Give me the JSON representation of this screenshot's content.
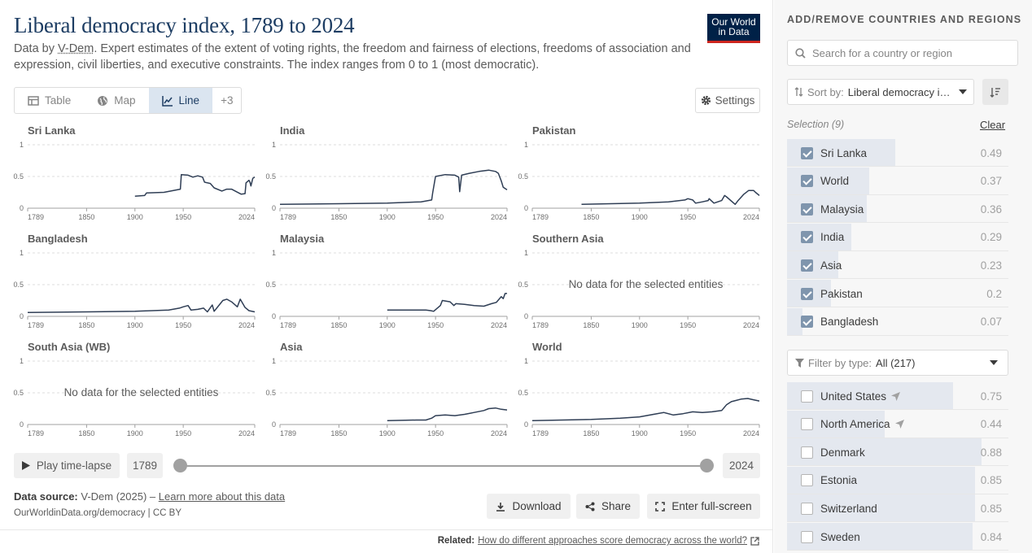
{
  "header": {
    "title": "Liberal democracy index, 1789 to 2024",
    "subtitle_prefix": "Data by ",
    "subtitle_link": "V-Dem",
    "subtitle_rest": ". Expert estimates of the extent of voting rights, the freedom and fairness of elections, freedoms of association and expression, civil liberties, and executive constraints. The index ranges from 0 to 1 (most democratic).",
    "logo_line1": "Our World",
    "logo_line2": "in Data"
  },
  "tabs": [
    {
      "label": "Table",
      "icon": "table-icon",
      "active": false
    },
    {
      "label": "Map",
      "icon": "globe-icon",
      "active": false
    },
    {
      "label": "Line",
      "icon": "line-chart-icon",
      "active": true
    },
    {
      "label": "+3",
      "icon": "",
      "active": false
    }
  ],
  "settings_label": "Settings",
  "timeline": {
    "play_label": "Play time-lapse",
    "start_year": "1789",
    "end_year": "2024"
  },
  "footer": {
    "source_label": "Data source:",
    "source_text": " V-Dem (2025) – ",
    "learn_more": "Learn more about this data",
    "license": "OurWorldinData.org/democracy | CC BY",
    "download_label": "Download",
    "share_label": "Share",
    "fullscreen_label": "Enter full-screen",
    "related_label": "Related:",
    "related_link": "How do different approaches score democracy across the world?"
  },
  "sidebar": {
    "title": "ADD/REMOVE COUNTRIES AND REGIONS",
    "search_placeholder": "Search for a country or region",
    "sort_label": "Sort by:",
    "sort_value": "Liberal democracy index",
    "selection_label": "Selection (9)",
    "clear_label": "Clear",
    "selected": [
      {
        "name": "Sri Lanka",
        "value": "0.49",
        "share": 0.49
      },
      {
        "name": "World",
        "value": "0.37",
        "share": 0.37
      },
      {
        "name": "Malaysia",
        "value": "0.36",
        "share": 0.36
      },
      {
        "name": "India",
        "value": "0.29",
        "share": 0.29
      },
      {
        "name": "Asia",
        "value": "0.23",
        "share": 0.23
      },
      {
        "name": "Pakistan",
        "value": "0.2",
        "share": 0.2
      },
      {
        "name": "Bangladesh",
        "value": "0.07",
        "share": 0.07
      }
    ],
    "filter_label": "Filter by type:",
    "filter_value": "All (217)",
    "available": [
      {
        "name": "United States",
        "value": "0.75",
        "share": 0.75,
        "arrow": true
      },
      {
        "name": "North America",
        "value": "0.44",
        "share": 0.44,
        "arrow": true
      },
      {
        "name": "Denmark",
        "value": "0.88",
        "share": 0.88,
        "arrow": false
      },
      {
        "name": "Estonia",
        "value": "0.85",
        "share": 0.85,
        "arrow": false
      },
      {
        "name": "Switzerland",
        "value": "0.85",
        "share": 0.85,
        "arrow": false
      },
      {
        "name": "Sweden",
        "value": "0.84",
        "share": 0.84,
        "arrow": false
      }
    ]
  },
  "chart_data": {
    "type": "line",
    "layout": "small-multiples",
    "x_ticks": [
      1789,
      1850,
      1900,
      1950,
      2024
    ],
    "y_ticks": [
      0,
      0.5,
      1
    ],
    "xlim": [
      1789,
      2024
    ],
    "ylim": [
      0,
      1
    ],
    "nodata_text": "No data for the selected entities",
    "panels": [
      {
        "name": "Sri Lanka",
        "series": [
          [
            1900,
            0.19
          ],
          [
            1910,
            0.2
          ],
          [
            1912,
            0.24
          ],
          [
            1930,
            0.25
          ],
          [
            1947,
            0.3
          ],
          [
            1948,
            0.53
          ],
          [
            1955,
            0.52
          ],
          [
            1960,
            0.49
          ],
          [
            1965,
            0.51
          ],
          [
            1970,
            0.49
          ],
          [
            1972,
            0.41
          ],
          [
            1978,
            0.39
          ],
          [
            1982,
            0.32
          ],
          [
            1990,
            0.27
          ],
          [
            1995,
            0.3
          ],
          [
            2000,
            0.3
          ],
          [
            2005,
            0.26
          ],
          [
            2010,
            0.22
          ],
          [
            2014,
            0.23
          ],
          [
            2015,
            0.4
          ],
          [
            2018,
            0.44
          ],
          [
            2019,
            0.41
          ],
          [
            2020,
            0.35
          ],
          [
            2022,
            0.47
          ],
          [
            2024,
            0.49
          ]
        ]
      },
      {
        "name": "India",
        "series": [
          [
            1789,
            0.06
          ],
          [
            1850,
            0.07
          ],
          [
            1900,
            0.08
          ],
          [
            1935,
            0.1
          ],
          [
            1946,
            0.13
          ],
          [
            1947,
            0.24
          ],
          [
            1950,
            0.5
          ],
          [
            1960,
            0.53
          ],
          [
            1970,
            0.52
          ],
          [
            1974,
            0.49
          ],
          [
            1975,
            0.26
          ],
          [
            1977,
            0.52
          ],
          [
            1985,
            0.55
          ],
          [
            1995,
            0.58
          ],
          [
            2005,
            0.6
          ],
          [
            2012,
            0.58
          ],
          [
            2015,
            0.55
          ],
          [
            2018,
            0.43
          ],
          [
            2020,
            0.33
          ],
          [
            2024,
            0.29
          ]
        ]
      },
      {
        "name": "Pakistan",
        "series": [
          [
            1840,
            0.06
          ],
          [
            1870,
            0.07
          ],
          [
            1900,
            0.08
          ],
          [
            1930,
            0.1
          ],
          [
            1947,
            0.13
          ],
          [
            1950,
            0.15
          ],
          [
            1955,
            0.13
          ],
          [
            1958,
            0.08
          ],
          [
            1965,
            0.1
          ],
          [
            1971,
            0.12
          ],
          [
            1972,
            0.15
          ],
          [
            1977,
            0.08
          ],
          [
            1985,
            0.12
          ],
          [
            1988,
            0.2
          ],
          [
            1990,
            0.18
          ],
          [
            1999,
            0.06
          ],
          [
            2002,
            0.12
          ],
          [
            2008,
            0.22
          ],
          [
            2013,
            0.28
          ],
          [
            2018,
            0.28
          ],
          [
            2020,
            0.25
          ],
          [
            2024,
            0.2
          ]
        ]
      },
      {
        "name": "Bangladesh",
        "series": [
          [
            1789,
            0.06
          ],
          [
            1850,
            0.07
          ],
          [
            1900,
            0.08
          ],
          [
            1935,
            0.1
          ],
          [
            1946,
            0.13
          ],
          [
            1950,
            0.15
          ],
          [
            1955,
            0.17
          ],
          [
            1958,
            0.1
          ],
          [
            1965,
            0.11
          ],
          [
            1971,
            0.13
          ],
          [
            1975,
            0.07
          ],
          [
            1980,
            0.18
          ],
          [
            1982,
            0.08
          ],
          [
            1991,
            0.25
          ],
          [
            1995,
            0.27
          ],
          [
            2000,
            0.23
          ],
          [
            2006,
            0.15
          ],
          [
            2009,
            0.27
          ],
          [
            2014,
            0.14
          ],
          [
            2018,
            0.09
          ],
          [
            2024,
            0.07
          ]
        ]
      },
      {
        "name": "Malaysia",
        "series": [
          [
            1900,
            0.1
          ],
          [
            1940,
            0.1
          ],
          [
            1945,
            0.09
          ],
          [
            1948,
            0.08
          ],
          [
            1955,
            0.17
          ],
          [
            1957,
            0.25
          ],
          [
            1965,
            0.23
          ],
          [
            1969,
            0.17
          ],
          [
            1971,
            0.2
          ],
          [
            1980,
            0.19
          ],
          [
            1990,
            0.17
          ],
          [
            2000,
            0.16
          ],
          [
            2008,
            0.2
          ],
          [
            2013,
            0.22
          ],
          [
            2018,
            0.31
          ],
          [
            2020,
            0.28
          ],
          [
            2022,
            0.36
          ],
          [
            2024,
            0.36
          ]
        ]
      },
      {
        "name": "Southern Asia",
        "series": []
      },
      {
        "name": "South Asia (WB)",
        "series": []
      },
      {
        "name": "Asia",
        "series": [
          [
            1900,
            0.06
          ],
          [
            1930,
            0.07
          ],
          [
            1940,
            0.07
          ],
          [
            1946,
            0.1
          ],
          [
            1950,
            0.14
          ],
          [
            1960,
            0.15
          ],
          [
            1970,
            0.14
          ],
          [
            1980,
            0.16
          ],
          [
            1990,
            0.19
          ],
          [
            2000,
            0.22
          ],
          [
            2005,
            0.25
          ],
          [
            2012,
            0.26
          ],
          [
            2018,
            0.24
          ],
          [
            2024,
            0.23
          ]
        ]
      },
      {
        "name": "World",
        "series": [
          [
            1789,
            0.06
          ],
          [
            1820,
            0.07
          ],
          [
            1850,
            0.08
          ],
          [
            1880,
            0.1
          ],
          [
            1900,
            0.12
          ],
          [
            1918,
            0.17
          ],
          [
            1925,
            0.19
          ],
          [
            1935,
            0.15
          ],
          [
            1945,
            0.17
          ],
          [
            1955,
            0.2
          ],
          [
            1965,
            0.19
          ],
          [
            1975,
            0.2
          ],
          [
            1985,
            0.22
          ],
          [
            1990,
            0.31
          ],
          [
            1995,
            0.36
          ],
          [
            2000,
            0.38
          ],
          [
            2005,
            0.4
          ],
          [
            2012,
            0.41
          ],
          [
            2018,
            0.39
          ],
          [
            2024,
            0.37
          ]
        ]
      }
    ]
  }
}
